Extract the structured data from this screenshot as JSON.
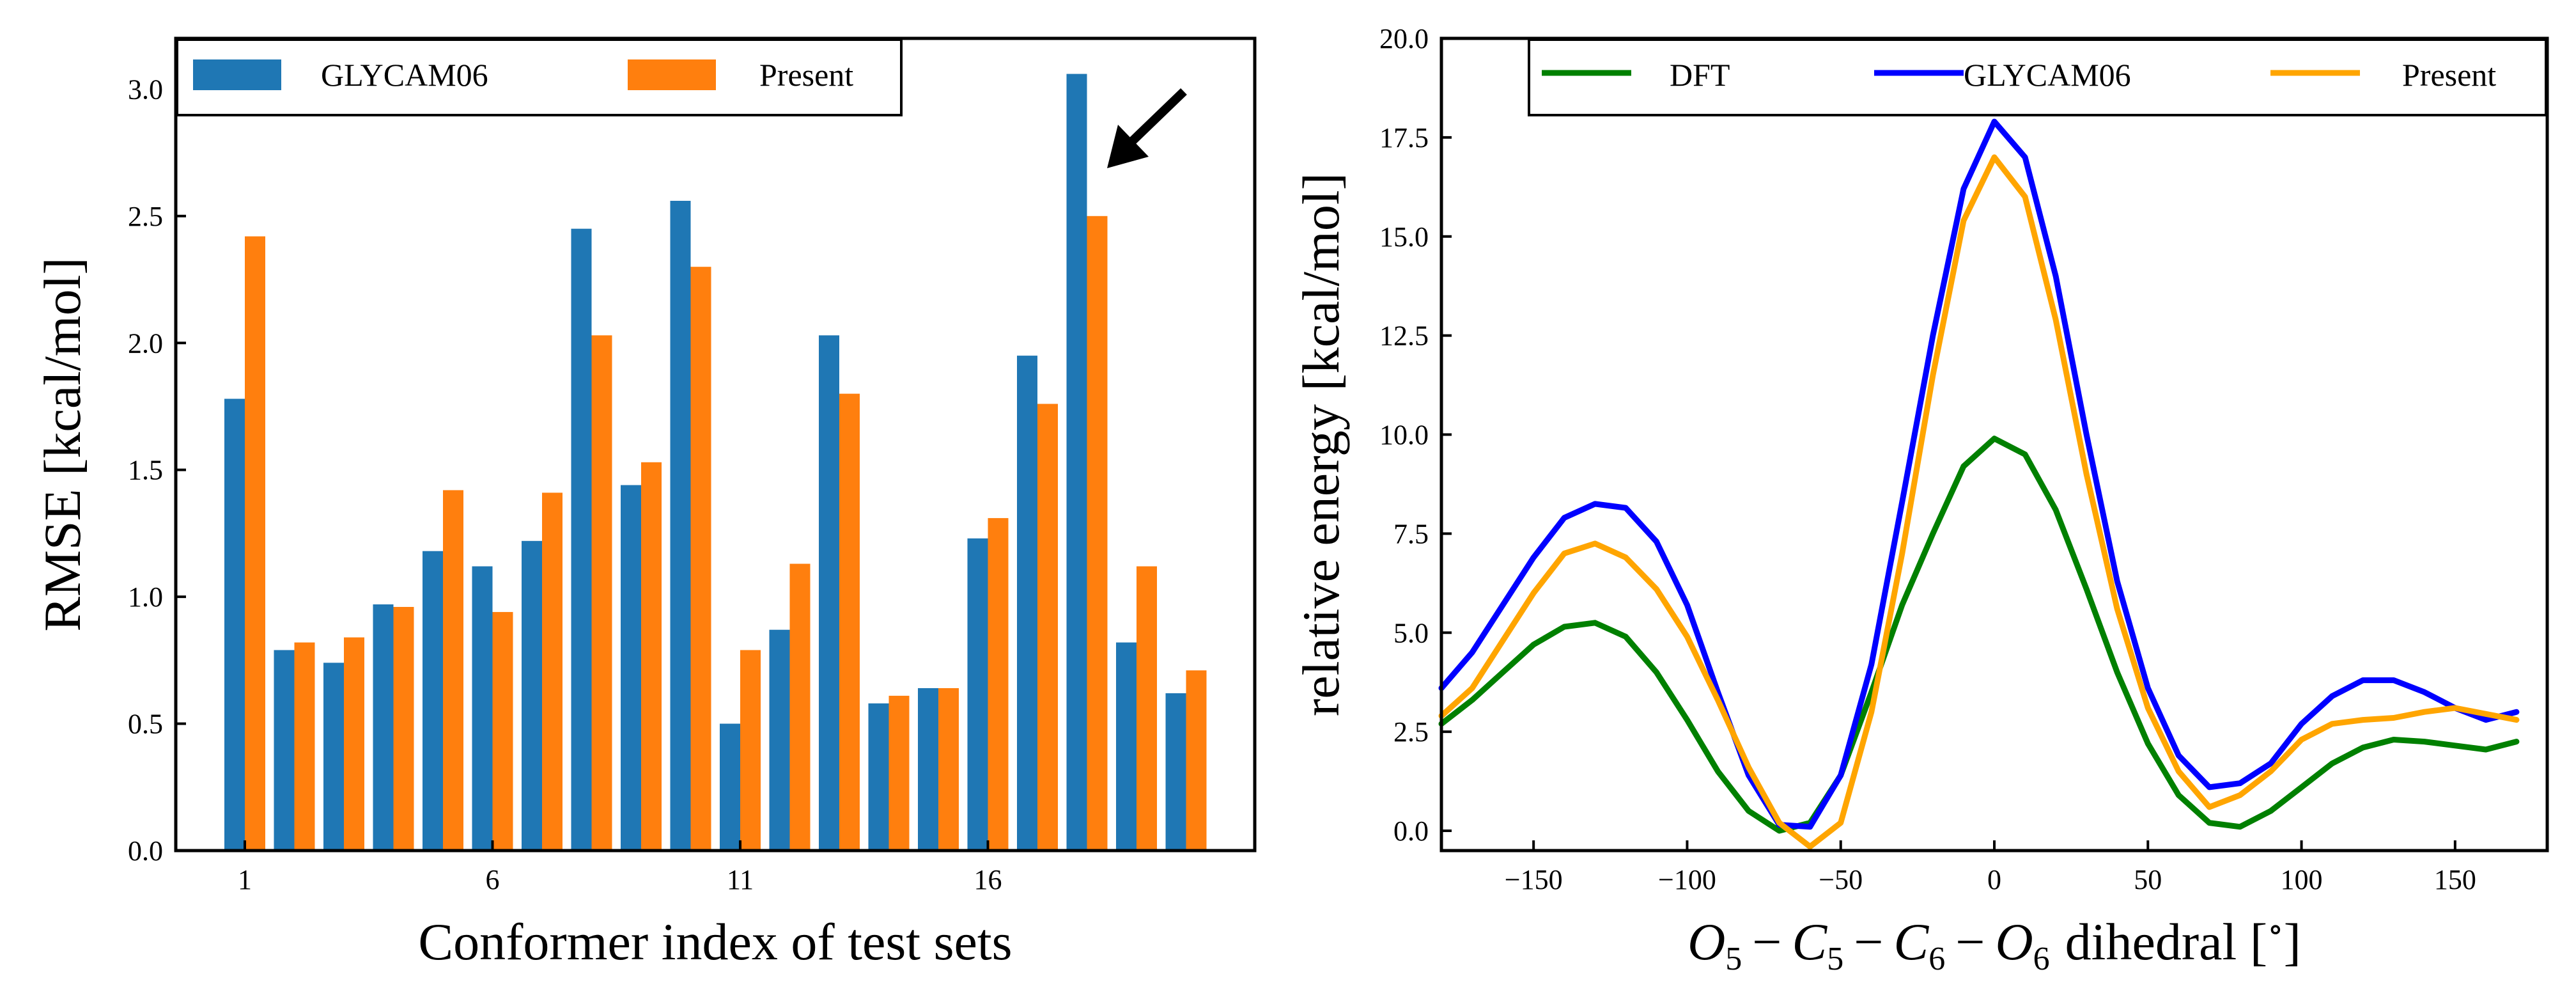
{
  "chart_data": [
    {
      "type": "bar",
      "xlabel": "Conformer index of test sets",
      "ylabel": "RMSE [kcal/mol]",
      "ylim": [
        0,
        3.2
      ],
      "yticks": [
        "0.0",
        "0.5",
        "1.0",
        "1.5",
        "2.0",
        "2.5",
        "3.0"
      ],
      "yticks_values": [
        0,
        0.5,
        1.0,
        1.5,
        2.0,
        2.5,
        3.0
      ],
      "xticks": [
        "1",
        "6",
        "11",
        "16"
      ],
      "xticks_index": [
        1,
        6,
        11,
        16
      ],
      "categories": [
        1,
        2,
        3,
        4,
        5,
        6,
        7,
        8,
        9,
        10,
        11,
        12,
        13,
        14,
        15,
        16,
        17,
        18,
        19,
        20
      ],
      "legend_position": "top-left",
      "annotation": "arrow pointing to conformer 18",
      "annotation_target": 18,
      "series": [
        {
          "name": "GLYCAM06",
          "color": "#1f77b4",
          "values": [
            1.78,
            0.79,
            0.74,
            0.97,
            1.18,
            1.12,
            1.22,
            2.45,
            1.44,
            2.56,
            0.5,
            0.87,
            2.03,
            0.58,
            0.64,
            1.23,
            1.95,
            3.06,
            0.82,
            0.62
          ]
        },
        {
          "name": "Present",
          "color": "#ff7f0e",
          "values": [
            2.42,
            0.82,
            0.84,
            0.96,
            1.42,
            0.94,
            1.41,
            2.03,
            1.53,
            2.3,
            0.79,
            1.13,
            1.8,
            0.61,
            0.64,
            1.31,
            1.76,
            2.5,
            1.12,
            0.71
          ]
        }
      ]
    },
    {
      "type": "line",
      "xlabel_parts": {
        "O": "O",
        "C": "C",
        "s5": "5",
        "s6": "6",
        "minus": "−",
        "rest": "dihedral [",
        "deg": "∘",
        "close": "]"
      },
      "ylabel": "relative energy [kcal/mol]",
      "xlim": [
        -180,
        180
      ],
      "ylim": [
        -0.5,
        20.0
      ],
      "xticks": [
        "−150",
        "−100",
        "−50",
        "0",
        "50",
        "100",
        "150"
      ],
      "xticks_values": [
        -150,
        -100,
        -50,
        0,
        50,
        100,
        150
      ],
      "yticks": [
        "0.0",
        "2.5",
        "5.0",
        "7.5",
        "10.0",
        "12.5",
        "15.0",
        "17.5",
        "20.0"
      ],
      "yticks_values": [
        0,
        2.5,
        5,
        7.5,
        10,
        12.5,
        15,
        17.5,
        20
      ],
      "legend_position": "top-right",
      "x": [
        -180,
        -170,
        -160,
        -150,
        -140,
        -130,
        -120,
        -110,
        -100,
        -90,
        -80,
        -70,
        -60,
        -50,
        -40,
        -30,
        -20,
        -10,
        0,
        10,
        20,
        30,
        40,
        50,
        60,
        70,
        80,
        90,
        100,
        110,
        120,
        130,
        140,
        150,
        160,
        170
      ],
      "series": [
        {
          "name": "DFT",
          "color": "#008000",
          "values": [
            2.7,
            3.3,
            4.0,
            4.7,
            5.15,
            5.25,
            4.9,
            4.0,
            2.8,
            1.5,
            0.5,
            0.0,
            0.2,
            1.4,
            3.5,
            5.7,
            7.5,
            9.2,
            9.9,
            9.5,
            8.1,
            6.1,
            4.0,
            2.2,
            0.9,
            0.2,
            0.1,
            0.5,
            1.1,
            1.7,
            2.1,
            2.3,
            2.25,
            2.15,
            2.05,
            2.25
          ]
        },
        {
          "name": "GLYCAM06",
          "color": "#0000ff",
          "values": [
            3.6,
            4.5,
            5.7,
            6.9,
            7.9,
            8.25,
            8.15,
            7.3,
            5.7,
            3.5,
            1.4,
            0.15,
            0.1,
            1.4,
            4.2,
            8.3,
            12.5,
            16.2,
            17.9,
            17.0,
            14.0,
            10.0,
            6.3,
            3.6,
            1.9,
            1.1,
            1.2,
            1.7,
            2.7,
            3.4,
            3.8,
            3.8,
            3.5,
            3.1,
            2.8,
            3.0
          ]
        },
        {
          "name": "Present",
          "color": "#ffa500",
          "values": [
            2.9,
            3.6,
            4.8,
            6.0,
            7.0,
            7.25,
            6.9,
            6.1,
            4.9,
            3.3,
            1.6,
            0.2,
            -0.4,
            0.2,
            3.0,
            7.0,
            11.5,
            15.4,
            17.0,
            16.0,
            12.9,
            9.0,
            5.6,
            3.1,
            1.5,
            0.6,
            0.9,
            1.5,
            2.3,
            2.7,
            2.8,
            2.85,
            3.0,
            3.1,
            2.95,
            2.8
          ]
        }
      ]
    }
  ]
}
